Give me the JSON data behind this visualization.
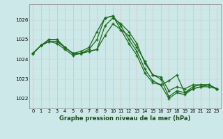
{
  "xlabel": "Graphe pression niveau de la mer (hPa)",
  "background_color": "#cde8e8",
  "grid_color_vertical": "#e8b8b8",
  "grid_color_horizontal": "#c8dede",
  "line_color": "#1a6b1a",
  "ylim": [
    1021.5,
    1026.8
  ],
  "xlim": [
    -0.5,
    23.5
  ],
  "yticks": [
    1022,
    1023,
    1024,
    1025,
    1026
  ],
  "xticks": [
    0,
    1,
    2,
    3,
    4,
    5,
    6,
    7,
    8,
    9,
    10,
    11,
    12,
    13,
    14,
    15,
    16,
    17,
    18,
    19,
    20,
    21,
    22,
    23
  ],
  "series": [
    [
      1024.3,
      1024.7,
      1024.9,
      1024.9,
      1024.6,
      1024.3,
      1024.3,
      1024.4,
      1024.5,
      1025.7,
      1026.1,
      1025.8,
      1025.4,
      1024.8,
      1023.8,
      1023.2,
      1023.0,
      1022.1,
      1022.4,
      1022.3,
      1022.5,
      1022.6,
      1022.6,
      1022.5
    ],
    [
      1024.3,
      1024.7,
      1024.9,
      1024.8,
      1024.5,
      1024.2,
      1024.3,
      1024.5,
      1025.0,
      1026.1,
      1026.2,
      1025.7,
      1025.0,
      1024.4,
      1023.5,
      1022.9,
      1022.7,
      1022.0,
      1022.3,
      1022.2,
      1022.5,
      1022.6,
      1022.7,
      1022.5
    ],
    [
      1024.3,
      1024.7,
      1025.0,
      1025.0,
      1024.6,
      1024.3,
      1024.3,
      1024.4,
      1024.5,
      1025.2,
      1025.8,
      1025.5,
      1025.2,
      1024.6,
      1023.9,
      1023.2,
      1023.1,
      1022.4,
      1022.6,
      1022.5,
      1022.7,
      1022.7,
      1022.7,
      1022.5
    ],
    [
      1024.3,
      1024.7,
      1025.0,
      1025.0,
      1024.6,
      1024.3,
      1024.4,
      1024.6,
      1025.4,
      1026.1,
      1026.2,
      1025.5,
      1024.8,
      1024.2,
      1023.3,
      1022.8,
      1022.7,
      1022.9,
      1023.2,
      1022.3,
      1022.6,
      1022.7,
      1022.7,
      1022.5
    ]
  ]
}
